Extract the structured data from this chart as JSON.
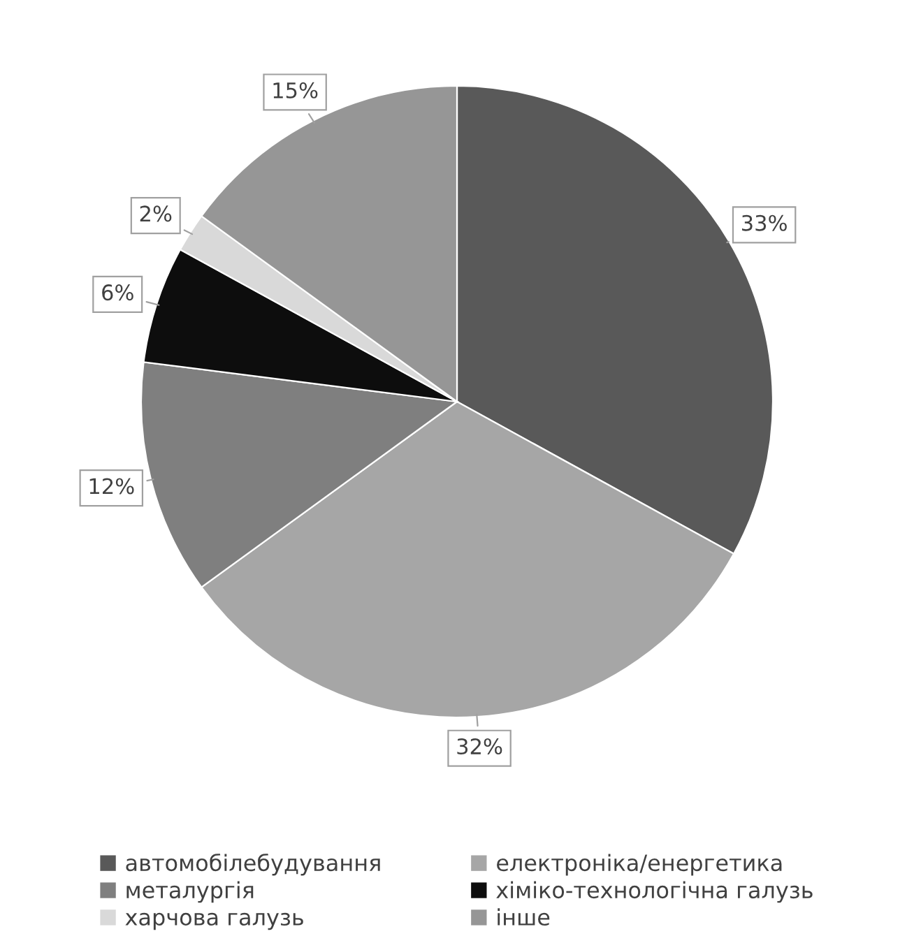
{
  "chart_data": {
    "type": "pie",
    "categories": [
      "автомобілебудування",
      "електроніка/енергетика",
      "металургія",
      "хіміко-технологічна галузь",
      "харчова галузь",
      "інше"
    ],
    "values": [
      33,
      32,
      12,
      6,
      2,
      15
    ],
    "colors": [
      "#595959",
      "#a6a6a6",
      "#7f7f7f",
      "#0d0d0d",
      "#d9d9d9",
      "#969696"
    ],
    "value_labels": [
      "33%",
      "32%",
      "12%",
      "6%",
      "2%",
      "15%"
    ],
    "legend": "bottom"
  }
}
